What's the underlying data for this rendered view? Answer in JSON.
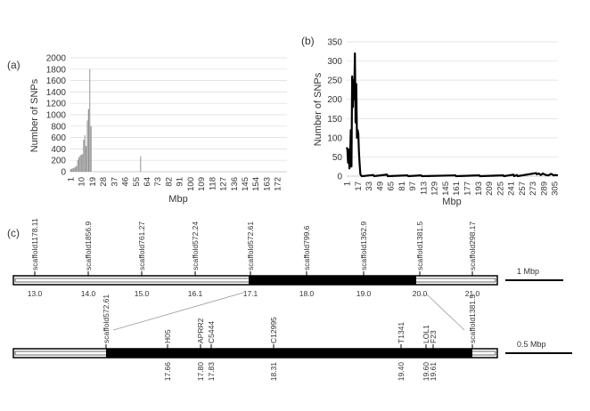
{
  "chart_data": [
    {
      "panel": "(a)",
      "type": "bar",
      "xlabel": "Mbp",
      "ylabel": "Number of SNPs",
      "ylim": [
        0,
        2000
      ],
      "yticks": [
        0,
        200,
        400,
        600,
        800,
        1000,
        1200,
        1400,
        1600,
        1800,
        2000
      ],
      "xlim": [
        1,
        180
      ],
      "xticks": [
        1,
        10,
        19,
        28,
        37,
        46,
        55,
        64,
        73,
        82,
        91,
        100,
        109,
        118,
        127,
        136,
        145,
        154,
        163,
        172
      ],
      "grid": true,
      "x": [
        1,
        2,
        3,
        4,
        5,
        6,
        7,
        8,
        9,
        10,
        11,
        12,
        13,
        14,
        15,
        16,
        17,
        18,
        59
      ],
      "values": [
        40,
        50,
        60,
        70,
        80,
        100,
        200,
        250,
        280,
        300,
        310,
        560,
        640,
        450,
        900,
        1100,
        1800,
        800,
        270
      ],
      "color": "#a6a6a6"
    },
    {
      "panel": "(b)",
      "type": "line",
      "xlabel": "Mbp",
      "ylabel": "Number of SNPs",
      "ylim": [
        0,
        350
      ],
      "yticks": [
        0,
        50,
        100,
        150,
        200,
        250,
        300,
        350
      ],
      "xlim": [
        1,
        310
      ],
      "xticks": [
        1,
        17,
        33,
        49,
        65,
        81,
        97,
        113,
        129,
        145,
        161,
        177,
        193,
        209,
        225,
        241,
        257,
        273,
        289,
        305
      ],
      "grid": true,
      "x": [
        1,
        2,
        3,
        4,
        5,
        6,
        7,
        8,
        9,
        10,
        11,
        12,
        13,
        14,
        15,
        16,
        17,
        18,
        19,
        20,
        21,
        22,
        23,
        24,
        40,
        41,
        60,
        61,
        90,
        91,
        110,
        111,
        160,
        161,
        195,
        196,
        230,
        231,
        245,
        246,
        250,
        251,
        278,
        279,
        282,
        285,
        288,
        291,
        296,
        300,
        304,
        306,
        310
      ],
      "values": [
        75,
        70,
        35,
        70,
        20,
        50,
        120,
        25,
        260,
        180,
        250,
        200,
        320,
        140,
        240,
        100,
        120,
        110,
        60,
        30,
        5,
        2,
        0,
        0,
        3,
        0,
        4,
        0,
        2,
        0,
        2,
        0,
        2,
        0,
        2,
        0,
        2,
        0,
        4,
        0,
        3,
        0,
        8,
        5,
        7,
        3,
        7,
        4,
        2,
        6,
        2,
        3,
        2
      ],
      "color": "#000000"
    }
  ],
  "diagram": {
    "panel": "(c)",
    "top": {
      "markers": [
        "scaffold1178.11",
        "scaffold1856.9",
        "scaffold761.27",
        "scaffold572.24",
        "scaffold572.61",
        "scaffold799.6",
        "scaffold1362.9",
        "scaffold1381.5",
        "scaffold298.17"
      ],
      "positions": [
        "13.0",
        "14.0",
        "15.0",
        "16.1",
        "17.1",
        "18.0",
        "19.0",
        "20.0",
        "21.0"
      ],
      "scale_label": "1 Mbp"
    },
    "bottom": {
      "markers": [
        "scaffold572.61",
        "H05",
        "APRR2",
        "C5444",
        "C12995",
        "T1341",
        "LOL1",
        "F23",
        "scaffold1381.5"
      ],
      "positions": [
        "",
        "17.66",
        "17.80",
        "17.83",
        "18.31",
        "19.40",
        "19.60",
        "19.61",
        ""
      ],
      "scale_label": "0.5 Mbp"
    }
  }
}
